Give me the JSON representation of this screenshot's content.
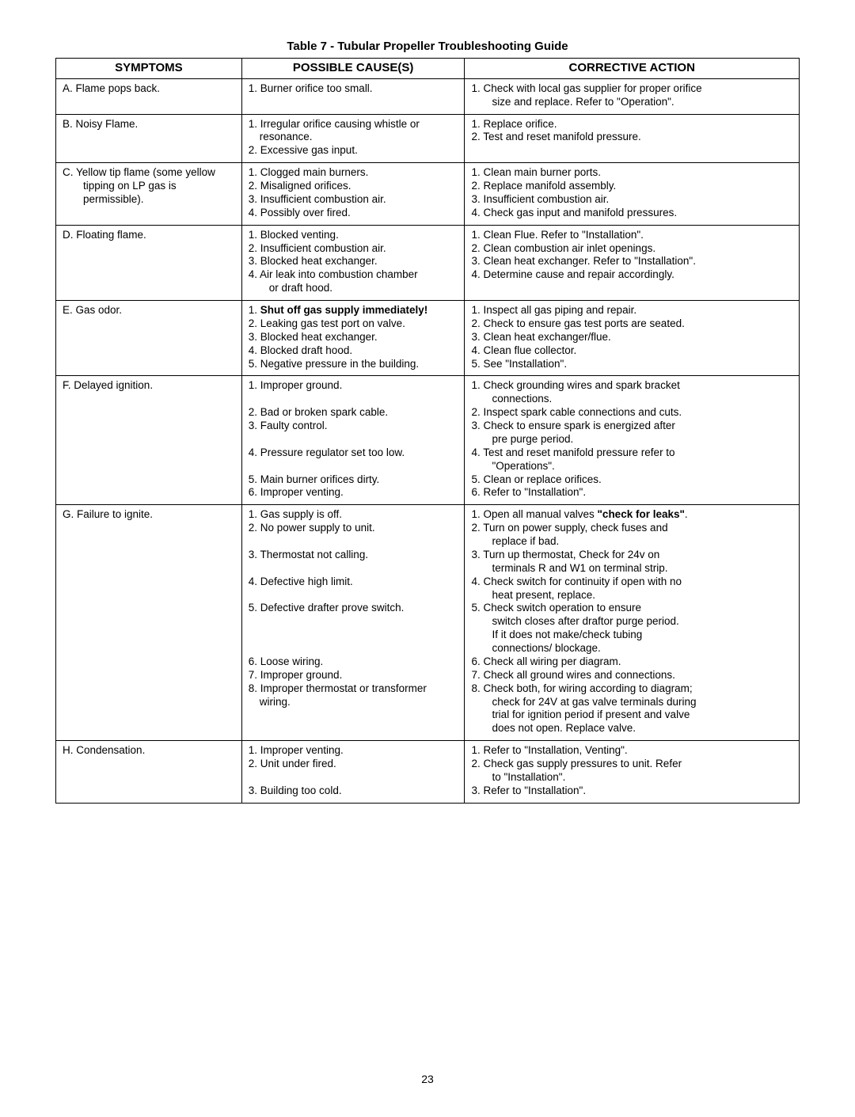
{
  "title": "Table 7 - Tubular Propeller Troubleshooting Guide",
  "page_number": "23",
  "headers": {
    "c0": "SYMPTOMS",
    "c1": "POSSIBLE CAUSE(S)",
    "c2": "CORRECTIVE ACTION"
  },
  "rows": {
    "A": {
      "symptom_line1": "A. Flame pops back.",
      "cause1": "1. Burner orifice too small.",
      "action1": "1. Check with local gas supplier for proper orifice",
      "action1b": "size and replace. Refer to \"Operation\"."
    },
    "B": {
      "symptom_line1": "B. Noisy Flame.",
      "cause1": "1. Irregular orifice causing whistle or resonance.",
      "cause2": "2. Excessive gas input.",
      "action1": "1. Replace orifice.",
      "action2": "2. Test and reset manifold pressure."
    },
    "C": {
      "symptom_line1": "C. Yellow tip flame (some yellow",
      "symptom_line2": "tipping on LP gas is permissible).",
      "cause1": "1. Clogged main burners.",
      "cause2": "2. Misaligned orifices.",
      "cause3": "3. Insufficient combustion air.",
      "cause4": "4. Possibly over fired.",
      "action1": "1. Clean main burner ports.",
      "action2": "2. Replace manifold assembly.",
      "action3": "3. Insufficient combustion air.",
      "action4": "4. Check gas input and manifold pressures."
    },
    "D": {
      "symptom_line1": "D. Floating flame.",
      "cause1": "1. Blocked venting.",
      "cause2": "2. Insufficient combustion air.",
      "cause3": "3. Blocked heat exchanger.",
      "cause4": "4. Air leak into combustion chamber",
      "cause4b": "or draft hood.",
      "action1": "1. Clean Flue. Refer to \"Installation\".",
      "action2": "2. Clean combustion air inlet openings.",
      "action3": "3. Clean heat exchanger. Refer to \"Installation\".",
      "action4": "4. Determine cause and repair accordingly."
    },
    "E": {
      "symptom_line1": "E. Gas odor.",
      "cause1_pre": "1. ",
      "cause1_bold": "Shut off gas supply immediately!",
      "cause2": "2. Leaking gas test port on valve.",
      "cause3": "3. Blocked heat exchanger.",
      "cause4": "4. Blocked draft hood.",
      "cause5": "5. Negative pressure in the building.",
      "action1": "1. Inspect all gas piping and repair.",
      "action2": "2. Check to ensure gas test ports are seated.",
      "action3": "3. Clean heat exchanger/flue.",
      "action4": "4. Clean flue collector.",
      "action5": "5. See \"Installation\"."
    },
    "F": {
      "symptom_line1": "F. Delayed ignition.",
      "cause1": "1. Improper ground.",
      "cause2": "2. Bad or broken spark cable.",
      "cause3": "3. Faulty control.",
      "cause4": "4. Pressure regulator set too low.",
      "cause5": "5. Main burner orifices dirty.",
      "cause6": "6. Improper venting.",
      "action1": "1. Check grounding wires and spark bracket",
      "action1b": "connections.",
      "action2": "2. Inspect spark cable connections and cuts.",
      "action3": "3. Check to ensure spark is energized after",
      "action3b": "pre purge period.",
      "action4": "4. Test and reset manifold pressure refer to",
      "action4b": "\"Operations\".",
      "action5": "5. Clean or replace orifices.",
      "action6": "6. Refer to \"Installation\"."
    },
    "G": {
      "symptom_line1": "G. Failure to ignite.",
      "cause1": "1. Gas supply is off.",
      "cause2": "2. No power supply to unit.",
      "cause3": "3. Thermostat not calling.",
      "cause4": "4. Defective high limit.",
      "cause5": "5. Defective drafter prove switch.",
      "cause6": "6. Loose wiring.",
      "cause7": "7. Improper ground.",
      "cause8": "8. Improper thermostat or transformer wiring.",
      "action1_pre": "1. Open all manual valves ",
      "action1_bold": "\"check for leaks\"",
      "action1_post": ".",
      "action2": "2. Turn on power supply, check fuses and",
      "action2b": "replace if bad.",
      "action3": "3. Turn up thermostat, Check for 24v on",
      "action3b": "terminals R and W1 on terminal strip.",
      "action4": "4. Check switch for continuity if open with no",
      "action4b": "heat present, replace.",
      "action5": "5. Check switch operation to ensure",
      "action5b": "switch closes after draftor purge period.",
      "action5c": "If it does not make/check tubing",
      "action5d": "connections/ blockage.",
      "action6": "6. Check all wiring per diagram.",
      "action7": "7. Check all ground wires and connections.",
      "action8": "8. Check both, for wiring according to diagram;",
      "action8b": "check for 24V at gas valve terminals during",
      "action8c": "trial for ignition period if present and valve",
      "action8d": "does not open. Replace valve."
    },
    "H": {
      "symptom_line1": "H. Condensation.",
      "cause1": "1. Improper venting.",
      "cause2": "2. Unit under fired.",
      "cause3": "3. Building too cold.",
      "action1": "1. Refer to \"Installation, Venting\".",
      "action2": "2. Check gas supply pressures to unit. Refer",
      "action2b": "to \"Installation\".",
      "action3": "3. Refer to \"Installation\"."
    }
  }
}
